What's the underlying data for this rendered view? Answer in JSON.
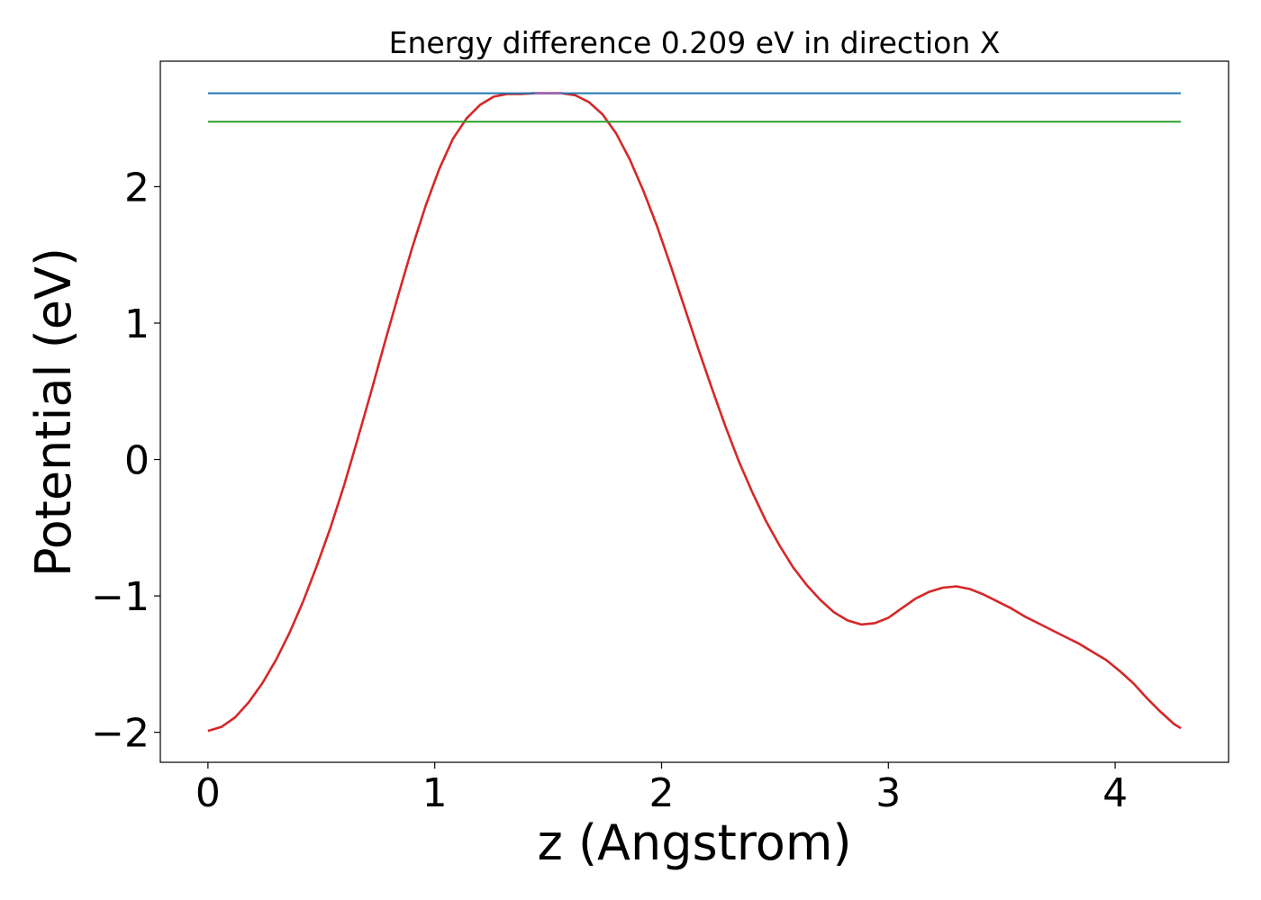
{
  "chart_data": {
    "type": "line",
    "title": "Energy difference 0.209 eV in direction X",
    "xlabel": "z (Angstrom)",
    "ylabel": "Potential (eV)",
    "xlim": [
      -0.21,
      4.5
    ],
    "ylim": [
      -2.22,
      2.92
    ],
    "xticks": [
      0,
      1,
      2,
      3,
      4
    ],
    "xtick_labels": [
      "0",
      "1",
      "2",
      "3",
      "4"
    ],
    "yticks": [
      -2,
      -1,
      0,
      1,
      2
    ],
    "ytick_labels": [
      "−2",
      "−1",
      "0",
      "1",
      "2"
    ],
    "grid": false,
    "series": [
      {
        "color": "#d62728",
        "x": [
          0.0,
          0.06,
          0.12,
          0.18,
          0.24,
          0.3,
          0.36,
          0.42,
          0.48,
          0.54,
          0.6,
          0.66,
          0.72,
          0.78,
          0.84,
          0.9,
          0.96,
          1.02,
          1.08,
          1.14,
          1.2,
          1.26,
          1.32,
          1.38,
          1.44,
          1.5,
          1.56,
          1.62,
          1.68,
          1.74,
          1.8,
          1.86,
          1.92,
          1.98,
          2.04,
          2.1,
          2.16,
          2.22,
          2.28,
          2.34,
          2.4,
          2.46,
          2.52,
          2.58,
          2.64,
          2.7,
          2.76,
          2.82,
          2.88,
          2.94,
          3.0,
          3.06,
          3.12,
          3.18,
          3.24,
          3.3,
          3.36,
          3.42,
          3.48,
          3.54,
          3.6,
          3.66,
          3.72,
          3.78,
          3.84,
          3.9,
          3.96,
          4.02,
          4.08,
          4.14,
          4.2,
          4.26,
          4.29
        ],
        "y": [
          -1.99,
          -1.96,
          -1.89,
          -1.78,
          -1.64,
          -1.47,
          -1.27,
          -1.04,
          -0.78,
          -0.5,
          -0.19,
          0.15,
          0.5,
          0.86,
          1.21,
          1.55,
          1.86,
          2.13,
          2.35,
          2.5,
          2.6,
          2.66,
          2.68,
          2.68,
          2.685,
          2.685,
          2.685,
          2.67,
          2.62,
          2.53,
          2.39,
          2.2,
          1.97,
          1.71,
          1.42,
          1.12,
          0.82,
          0.53,
          0.25,
          -0.01,
          -0.24,
          -0.45,
          -0.63,
          -0.79,
          -0.92,
          -1.03,
          -1.12,
          -1.18,
          -1.21,
          -1.2,
          -1.16,
          -1.09,
          -1.02,
          -0.97,
          -0.94,
          -0.93,
          -0.95,
          -0.99,
          -1.04,
          -1.09,
          -1.15,
          -1.2,
          -1.25,
          -1.3,
          -1.35,
          -1.41,
          -1.47,
          -1.55,
          -1.64,
          -1.75,
          -1.85,
          -1.94,
          -1.97
        ]
      },
      {
        "color": "#1f77b4",
        "x": [
          0.0,
          4.29
        ],
        "y": [
          2.685,
          2.685
        ]
      },
      {
        "color": "#2ca02c",
        "x": [
          0.0,
          4.29
        ],
        "y": [
          2.476,
          2.476
        ]
      },
      {
        "color": "#9467bd",
        "x": [
          1.44,
          1.5,
          1.56
        ],
        "y": [
          2.683,
          2.686,
          2.683
        ]
      }
    ]
  }
}
